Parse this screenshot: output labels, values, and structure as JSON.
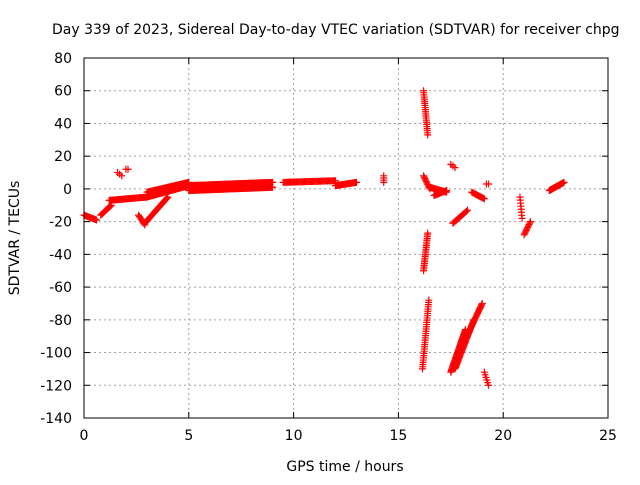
{
  "chart_data": {
    "type": "scatter",
    "title": "Day 339 of 2023, Sidereal Day-to-day VTEC variation (SDTVAR) for receiver chpg",
    "xlabel": "GPS time / hours",
    "ylabel": "SDTVAR / TECUs",
    "xlim": [
      0,
      25
    ],
    "ylim": [
      -140,
      80
    ],
    "xticks": [
      0,
      5,
      10,
      15,
      20,
      25
    ],
    "yticks": [
      -140,
      -120,
      -100,
      -80,
      -60,
      -40,
      -20,
      0,
      20,
      40,
      60,
      80
    ],
    "grid": true,
    "marker": "plus",
    "marker_color": "#ff0000",
    "series": [
      {
        "name": "sdtvar",
        "segments": [
          {
            "x0": 0.0,
            "x1": 0.6,
            "y0": -16,
            "y1": -19,
            "n": 14
          },
          {
            "x0": 0.8,
            "x1": 1.3,
            "y0": -16,
            "y1": -10,
            "n": 14
          },
          {
            "x0": 1.2,
            "x1": 3.0,
            "y0": -7,
            "y1": -5,
            "n": 40
          },
          {
            "x0": 2.6,
            "x1": 2.9,
            "y0": -16,
            "y1": -22,
            "n": 8
          },
          {
            "x0": 2.9,
            "x1": 4.0,
            "y0": -21,
            "y1": -5,
            "n": 30
          },
          {
            "x0": 3.0,
            "x1": 5.0,
            "y0": -5,
            "y1": 2,
            "n": 50
          },
          {
            "x0": 3.0,
            "x1": 5.0,
            "y0": -2,
            "y1": 4,
            "n": 50
          },
          {
            "x0": 5.0,
            "x1": 9.0,
            "y0": 2,
            "y1": 4,
            "n": 110
          },
          {
            "x0": 5.0,
            "x1": 9.0,
            "y0": -1,
            "y1": 1,
            "n": 110
          },
          {
            "x0": 9.5,
            "x1": 12.0,
            "y0": 4,
            "y1": 5,
            "n": 50
          },
          {
            "x0": 12.0,
            "x1": 13.0,
            "y0": 2,
            "y1": 4,
            "n": 25
          },
          {
            "x0": 1.6,
            "x1": 1.8,
            "y0": 10,
            "y1": 8,
            "n": 3
          },
          {
            "x0": 2.0,
            "x1": 2.1,
            "y0": 12,
            "y1": 12,
            "n": 2
          },
          {
            "x0": 14.3,
            "x1": 14.3,
            "y0": 4,
            "y1": 8,
            "n": 4
          },
          {
            "x0": 16.2,
            "x1": 16.4,
            "y0": 60,
            "y1": 33,
            "n": 22
          },
          {
            "x0": 16.2,
            "x1": 16.5,
            "y0": 8,
            "y1": 0,
            "n": 10
          },
          {
            "x0": 16.2,
            "x1": 16.4,
            "y0": -50,
            "y1": -27,
            "n": 22
          },
          {
            "x0": 16.15,
            "x1": 16.45,
            "y0": -110,
            "y1": -68,
            "n": 32
          },
          {
            "x0": 16.5,
            "x1": 17.3,
            "y0": 1,
            "y1": -2,
            "n": 24
          },
          {
            "x0": 16.7,
            "x1": 17.3,
            "y0": -4,
            "y1": -1,
            "n": 16
          },
          {
            "x0": 17.5,
            "x1": 17.7,
            "y0": 15,
            "y1": 13,
            "n": 3
          },
          {
            "x0": 17.6,
            "x1": 18.3,
            "y0": -21,
            "y1": -13,
            "n": 14
          },
          {
            "x0": 17.5,
            "x1": 18.2,
            "y0": -112,
            "y1": -86,
            "n": 40
          },
          {
            "x0": 17.7,
            "x1": 18.6,
            "y0": -110,
            "y1": -80,
            "n": 40
          },
          {
            "x0": 17.9,
            "x1": 19.0,
            "y0": -100,
            "y1": -70,
            "n": 40
          },
          {
            "x0": 18.5,
            "x1": 19.1,
            "y0": -2,
            "y1": -6,
            "n": 14
          },
          {
            "x0": 19.1,
            "x1": 19.3,
            "y0": -112,
            "y1": -120,
            "n": 6
          },
          {
            "x0": 19.2,
            "x1": 19.3,
            "y0": 3,
            "y1": 3,
            "n": 2
          },
          {
            "x0": 20.8,
            "x1": 20.9,
            "y0": -5,
            "y1": -18,
            "n": 8
          },
          {
            "x0": 21.0,
            "x1": 21.3,
            "y0": -28,
            "y1": -20,
            "n": 10
          },
          {
            "x0": 22.2,
            "x1": 22.9,
            "y0": -1,
            "y1": 4,
            "n": 28
          }
        ]
      }
    ]
  }
}
